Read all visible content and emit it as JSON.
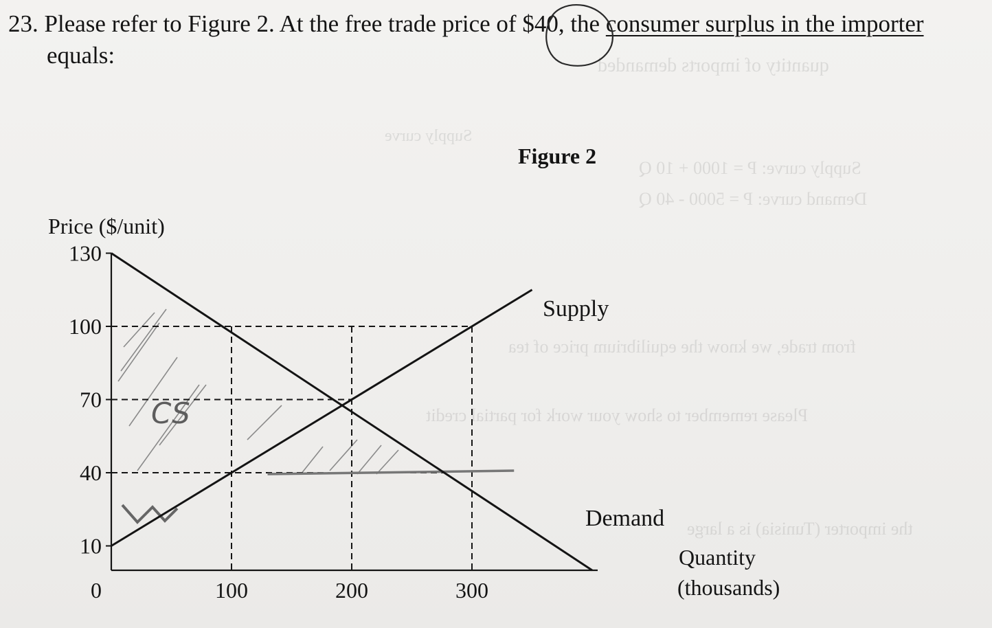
{
  "question": {
    "number": "23.",
    "text_before_price": "Please refer to Figure 2. At the free trade price of ",
    "price_text": "$40",
    "text_after_price": ", the ",
    "underlined_phrase": "consumer surplus in the importer",
    "line2": "equals:"
  },
  "chart_data": {
    "type": "line",
    "title": "Figure 2",
    "ylabel": "Price ($/unit)",
    "xlabel": "Quantity (thousands)",
    "xlabel_line1": "Quantity",
    "xlabel_line2": "(thousands)",
    "xlim": [
      0,
      400
    ],
    "ylim": [
      0,
      130
    ],
    "x_ticks": [
      0,
      100,
      200,
      300
    ],
    "x_tick_labels": [
      "0",
      "100",
      "200",
      "300"
    ],
    "y_ticks": [
      10,
      40,
      70,
      100,
      130
    ],
    "y_tick_labels": [
      "10",
      "40",
      "70",
      "100",
      "130"
    ],
    "series": [
      {
        "name": "Supply",
        "points": [
          [
            0,
            10
          ],
          [
            350,
            115
          ]
        ]
      },
      {
        "name": "Demand",
        "points": [
          [
            0,
            130
          ],
          [
            400,
            0
          ]
        ]
      }
    ],
    "reference_lines": {
      "horizontal_dashed": [
        100,
        70
      ],
      "vertical_dashed": [
        100,
        200,
        300
      ],
      "world_price_line": 40
    },
    "annotations": {
      "handwritten_label": "CS",
      "circled_text": "$40"
    },
    "grid": false,
    "legend": "none"
  }
}
